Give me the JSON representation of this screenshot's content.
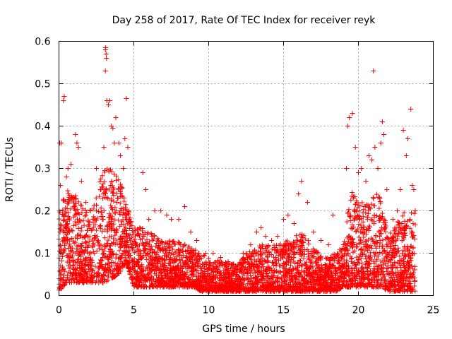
{
  "chart_data": {
    "type": "scatter",
    "title": "Day 258 of 2017, Rate Of TEC Index for receiver reyk",
    "xlabel": "GPS time / hours",
    "ylabel": "ROTI / TECUs",
    "xlim": [
      0,
      25
    ],
    "ylim": [
      0,
      0.6
    ],
    "xticks": [
      "0",
      "5",
      "10",
      "15",
      "20",
      "25"
    ],
    "xtick_values": [
      0,
      5,
      10,
      15,
      20,
      25
    ],
    "yticks": [
      "0",
      "0.1",
      "0.2",
      "0.3",
      "0.4",
      "0.5",
      "0.6"
    ],
    "ytick_values": [
      0,
      0.1,
      0.2,
      0.3,
      0.4,
      0.5,
      0.6
    ],
    "grid": true,
    "marker": "+",
    "color": "#ff0000",
    "series": [
      {
        "name": "ROTI",
        "points": [
          [
            0.05,
            0.36
          ],
          [
            0.1,
            0.26
          ],
          [
            0.15,
            0.36
          ],
          [
            0.3,
            0.46
          ],
          [
            0.35,
            0.47
          ],
          [
            0.5,
            0.28
          ],
          [
            0.6,
            0.3
          ],
          [
            0.8,
            0.31
          ],
          [
            1.1,
            0.38
          ],
          [
            1.2,
            0.36
          ],
          [
            1.3,
            0.35
          ],
          [
            0.7,
            0.15
          ],
          [
            1.0,
            0.21
          ],
          [
            1.5,
            0.27
          ],
          [
            1.8,
            0.22
          ],
          [
            2.1,
            0.2
          ],
          [
            2.5,
            0.3
          ],
          [
            2.8,
            0.25
          ],
          [
            3.0,
            0.35
          ],
          [
            3.1,
            0.58
          ],
          [
            3.12,
            0.585
          ],
          [
            3.15,
            0.57
          ],
          [
            3.17,
            0.56
          ],
          [
            3.1,
            0.53
          ],
          [
            3.2,
            0.46
          ],
          [
            3.3,
            0.45
          ],
          [
            3.4,
            0.46
          ],
          [
            3.5,
            0.4
          ],
          [
            3.6,
            0.395
          ],
          [
            3.7,
            0.36
          ],
          [
            3.8,
            0.42
          ],
          [
            4.0,
            0.36
          ],
          [
            4.1,
            0.33
          ],
          [
            4.3,
            0.3
          ],
          [
            4.5,
            0.465
          ],
          [
            4.6,
            0.35
          ],
          [
            4.4,
            0.37
          ],
          [
            4.7,
            0.18
          ],
          [
            5.0,
            0.15
          ],
          [
            5.6,
            0.29
          ],
          [
            5.8,
            0.25
          ],
          [
            6.0,
            0.18
          ],
          [
            6.4,
            0.2
          ],
          [
            6.8,
            0.2
          ],
          [
            7.2,
            0.19
          ],
          [
            7.5,
            0.18
          ],
          [
            8.0,
            0.18
          ],
          [
            8.4,
            0.21
          ],
          [
            8.8,
            0.15
          ],
          [
            9.2,
            0.13
          ],
          [
            9.8,
            0.1
          ],
          [
            10.3,
            0.1
          ],
          [
            10.8,
            0.09
          ],
          [
            11.3,
            0.08
          ],
          [
            11.8,
            0.07
          ],
          [
            12.3,
            0.1
          ],
          [
            12.8,
            0.12
          ],
          [
            13.2,
            0.15
          ],
          [
            13.5,
            0.16
          ],
          [
            13.8,
            0.14
          ],
          [
            14.2,
            0.13
          ],
          [
            14.6,
            0.14
          ],
          [
            15.0,
            0.18
          ],
          [
            15.3,
            0.19
          ],
          [
            15.7,
            0.17
          ],
          [
            16.0,
            0.24
          ],
          [
            16.2,
            0.27
          ],
          [
            16.6,
            0.22
          ],
          [
            17.0,
            0.15
          ],
          [
            17.5,
            0.13
          ],
          [
            18.0,
            0.12
          ],
          [
            18.3,
            0.19
          ],
          [
            18.6,
            0.1
          ],
          [
            19.0,
            0.12
          ],
          [
            19.2,
            0.3
          ],
          [
            19.3,
            0.4
          ],
          [
            19.4,
            0.42
          ],
          [
            19.6,
            0.43
          ],
          [
            19.8,
            0.35
          ],
          [
            20.0,
            0.29
          ],
          [
            20.2,
            0.3
          ],
          [
            20.5,
            0.27
          ],
          [
            20.7,
            0.33
          ],
          [
            20.9,
            0.32
          ],
          [
            21.0,
            0.53
          ],
          [
            21.1,
            0.35
          ],
          [
            21.3,
            0.3
          ],
          [
            21.5,
            0.36
          ],
          [
            21.6,
            0.41
          ],
          [
            21.7,
            0.38
          ],
          [
            21.9,
            0.25
          ],
          [
            22.3,
            0.18
          ],
          [
            22.6,
            0.2
          ],
          [
            22.8,
            0.25
          ],
          [
            23.0,
            0.39
          ],
          [
            23.2,
            0.33
          ],
          [
            23.3,
            0.37
          ],
          [
            23.5,
            0.44
          ],
          [
            23.6,
            0.26
          ],
          [
            23.7,
            0.25
          ],
          [
            23.8,
            0.2
          ]
        ]
      }
    ],
    "envelope": {
      "description": "dense noise band of many additional ROTI samples",
      "hours": [
        0,
        0.5,
        1,
        1.5,
        2,
        2.5,
        3,
        3.5,
        4,
        4.5,
        5,
        5.5,
        6,
        6.5,
        7,
        7.5,
        8,
        8.5,
        9,
        9.5,
        10,
        10.5,
        11,
        11.5,
        12,
        12.5,
        13,
        13.5,
        14,
        14.5,
        15,
        15.5,
        16,
        16.5,
        17,
        17.5,
        18,
        18.5,
        19,
        19.5,
        20,
        20.5,
        21,
        21.5,
        22,
        22.5,
        23,
        23.5
      ],
      "upper": [
        0.2,
        0.25,
        0.24,
        0.22,
        0.2,
        0.24,
        0.3,
        0.3,
        0.28,
        0.22,
        0.16,
        0.17,
        0.15,
        0.14,
        0.13,
        0.13,
        0.13,
        0.12,
        0.11,
        0.1,
        0.09,
        0.085,
        0.08,
        0.075,
        0.08,
        0.1,
        0.11,
        0.12,
        0.12,
        0.12,
        0.13,
        0.13,
        0.15,
        0.14,
        0.11,
        0.1,
        0.09,
        0.1,
        0.12,
        0.25,
        0.22,
        0.22,
        0.24,
        0.24,
        0.14,
        0.17,
        0.2,
        0.2
      ],
      "lower": [
        0.01,
        0.03,
        0.03,
        0.03,
        0.03,
        0.03,
        0.03,
        0.04,
        0.05,
        0.08,
        0.02,
        0.02,
        0.02,
        0.02,
        0.02,
        0.02,
        0.02,
        0.02,
        0.02,
        0.01,
        0.01,
        0.01,
        0.01,
        0.01,
        0.01,
        0.01,
        0.01,
        0.01,
        0.01,
        0.01,
        0.01,
        0.01,
        0.01,
        0.01,
        0.01,
        0.01,
        0.01,
        0.01,
        0.02,
        0.02,
        0.02,
        0.02,
        0.02,
        0.02,
        0.01,
        0.01,
        0.01,
        0.01
      ],
      "samples_per_hour": 180,
      "hour_range": [
        0,
        23.8
      ]
    }
  }
}
